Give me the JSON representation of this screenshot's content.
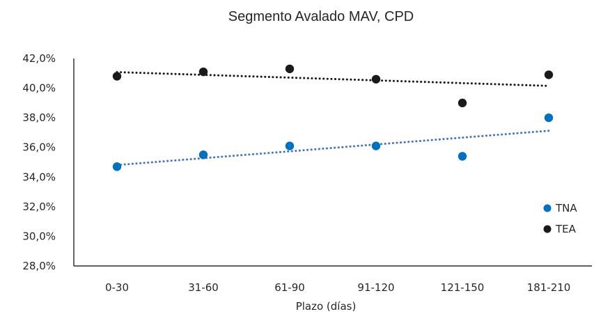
{
  "chart_data": {
    "type": "scatter",
    "title": "Segmento Avalado MAV, CPD",
    "xlabel": "Plazo (días)",
    "ylabel": "",
    "categories": [
      "0-30",
      "31-60",
      "61-90",
      "91-120",
      "121-150",
      "181-210"
    ],
    "ylim": [
      28,
      42
    ],
    "yticks": [
      "28,0%",
      "30,0%",
      "32,0%",
      "34,0%",
      "36,0%",
      "38,0%",
      "40,0%",
      "42,0%"
    ],
    "grid": false,
    "legend_position": "right",
    "trendline": "dotted linear",
    "series": [
      {
        "name": "TNA",
        "color": "#0070C0",
        "values": [
          34.7,
          35.5,
          36.1,
          36.1,
          35.4,
          38.0
        ]
      },
      {
        "name": "TEA",
        "color": "#1A1A1A",
        "values": [
          40.8,
          41.1,
          41.3,
          40.6,
          39.0,
          40.9
        ]
      }
    ],
    "trend_colors": {
      "TNA": "#4472C4",
      "TEA": "#1A1A1A"
    }
  }
}
